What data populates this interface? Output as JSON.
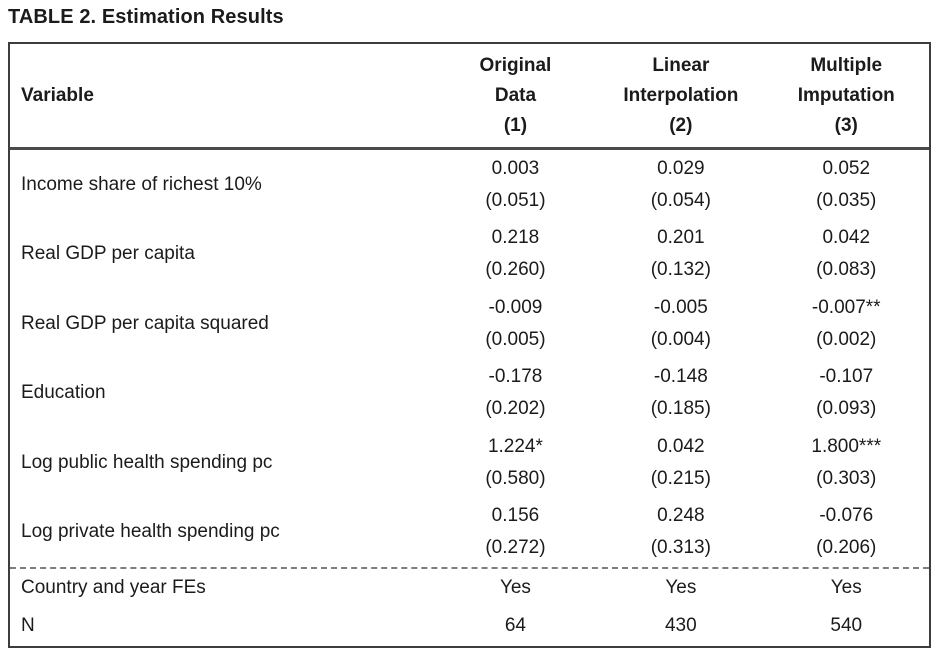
{
  "title": "TABLE 2. Estimation Results",
  "table": {
    "header": {
      "variable_label": "Variable",
      "columns": [
        {
          "line1": "Original",
          "line2": "Data",
          "number": "(1)"
        },
        {
          "line1": "Linear",
          "line2": "Interpolation",
          "number": "(2)"
        },
        {
          "line1": "Multiple",
          "line2": "Imputation",
          "number": "(3)"
        }
      ]
    },
    "rows": [
      {
        "label": "Income share of richest 10%",
        "cells": [
          {
            "coef": "0.003",
            "se": "(0.051)"
          },
          {
            "coef": "0.029",
            "se": "(0.054)"
          },
          {
            "coef": "0.052",
            "se": "(0.035)"
          }
        ]
      },
      {
        "label": "Real GDP per capita",
        "cells": [
          {
            "coef": "0.218",
            "se": "(0.260)"
          },
          {
            "coef": "0.201",
            "se": "(0.132)"
          },
          {
            "coef": "0.042",
            "se": "(0.083)"
          }
        ]
      },
      {
        "label": "Real GDP per capita squared",
        "cells": [
          {
            "coef": "-0.009",
            "se": "(0.005)"
          },
          {
            "coef": "-0.005",
            "se": "(0.004)"
          },
          {
            "coef": "-0.007**",
            "se": "(0.002)"
          }
        ]
      },
      {
        "label": "Education",
        "cells": [
          {
            "coef": "-0.178",
            "se": "(0.202)"
          },
          {
            "coef": "-0.148",
            "se": "(0.185)"
          },
          {
            "coef": "-0.107",
            "se": "(0.093)"
          }
        ]
      },
      {
        "label": "Log public health spending pc",
        "cells": [
          {
            "coef": "1.224*",
            "se": "(0.580)"
          },
          {
            "coef": "0.042",
            "se": "(0.215)"
          },
          {
            "coef": "1.800***",
            "se": "(0.303)"
          }
        ]
      },
      {
        "label": "Log private health spending pc",
        "cells": [
          {
            "coef": "0.156",
            "se": "(0.272)"
          },
          {
            "coef": "0.248",
            "se": "(0.313)"
          },
          {
            "coef": "-0.076",
            "se": "(0.206)"
          }
        ]
      }
    ],
    "footer_rows": [
      {
        "label": "Country and year FEs",
        "values": [
          "Yes",
          "Yes",
          "Yes"
        ]
      },
      {
        "label": "N",
        "values": [
          "64",
          "430",
          "540"
        ]
      }
    ]
  }
}
